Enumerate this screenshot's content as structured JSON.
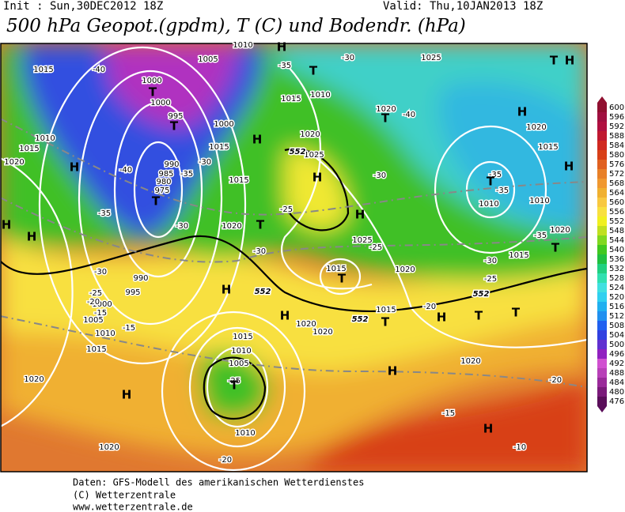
{
  "header": {
    "init": "Init : Sun,30DEC2012 18Z",
    "valid": "Valid: Thu,10JAN2013 18Z",
    "title": "500 hPa Geopot.(gpdm), T (C) und Bodendr. (hPa)"
  },
  "map": {
    "isobar_labels": [
      "1010",
      "1005",
      "1015",
      "1000",
      "1000",
      "995",
      "1000",
      "1010",
      "1015",
      "1020",
      "990",
      "985",
      "980",
      "975",
      "1015",
      "1015",
      "1020",
      "990",
      "995",
      "1000",
      "1005",
      "1010",
      "1015",
      "1020",
      "1020",
      "1015",
      "1010",
      "1005",
      "1010",
      "1020",
      "1020",
      "1015",
      "1020",
      "1025",
      "1015",
      "1015",
      "1010",
      "1020",
      "1025",
      "1025",
      "1020",
      "1020",
      "1015",
      "1010",
      "1010",
      "1020",
      "1015",
      "1020"
    ],
    "temperature_labels": [
      "-40",
      "-30",
      "-35",
      "-40",
      "-30",
      "-40",
      "-35",
      "-35",
      "-30",
      "-25",
      "-30",
      "-30",
      "-25",
      "-35",
      "-35",
      "-35",
      "-30",
      "-25",
      "-30",
      "-25",
      "-20",
      "-15",
      "-15",
      "-20",
      "-25",
      "-20",
      "-15",
      "-10",
      "-20"
    ],
    "geopotential_labels": [
      "552",
      "552",
      "552",
      "552"
    ],
    "systems": [
      "H",
      "T",
      "T",
      "T",
      "T",
      "H",
      "H",
      "T",
      "H",
      "H",
      "T",
      "H",
      "T",
      "H",
      "H",
      "T",
      "T",
      "H",
      "H",
      "H",
      "T",
      "T",
      "H",
      "T",
      "H",
      "T",
      "H",
      "H",
      "H",
      "T"
    ]
  },
  "legend": {
    "levels": [
      476,
      480,
      484,
      488,
      492,
      496,
      500,
      504,
      508,
      512,
      516,
      520,
      524,
      528,
      532,
      536,
      540,
      544,
      548,
      552,
      556,
      560,
      564,
      568,
      572,
      576,
      580,
      584,
      588,
      592,
      596,
      600
    ],
    "colors": [
      "#5a0e5a",
      "#7a1a7a",
      "#9a2a9a",
      "#b840b8",
      "#d050d0",
      "#9020c0",
      "#6030d0",
      "#3040e0",
      "#2060f0",
      "#2090f0",
      "#20b0f0",
      "#30d0f0",
      "#40e0e0",
      "#30e0b0",
      "#20d080",
      "#20c040",
      "#40c820",
      "#80d820",
      "#c0e020",
      "#f0f020",
      "#f8e040",
      "#f8c840",
      "#f0b030",
      "#f09830",
      "#e88028",
      "#e06020",
      "#d84018",
      "#d02820",
      "#c01830",
      "#b01040",
      "#a01040",
      "#901030"
    ]
  },
  "footer": {
    "line1": "Daten: GFS-Modell des amerikanischen Wetterdienstes",
    "line2": "(C) Wetterzentrale",
    "line3": "www.wetterzentrale.de"
  }
}
